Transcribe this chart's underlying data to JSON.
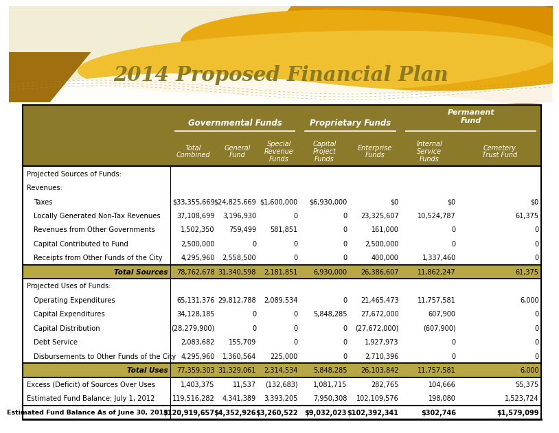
{
  "title": "2014 Proposed Financial Plan",
  "title_color": "#8B7A20",
  "header_bg": "#8B7A2A",
  "col_group1_label": "Governmental Funds",
  "col_group2_label": "Proprietary Funds",
  "col_group3_label": "Permanent\nFund",
  "col_headers": [
    "Total\nCombined",
    "General\nFund",
    "Special\nRevenue\nFunds",
    "Capital\nProject\nFunds",
    "Enterprise\nFunds",
    "Internal\nService\nFunds",
    "Cemetery\nTrust Fund"
  ],
  "rows": [
    {
      "label": "Projected Sources of Funds:",
      "values": [
        "",
        "",
        "",
        "",
        "",
        "",
        ""
      ],
      "style": "section"
    },
    {
      "label": "Revenues:",
      "values": [
        "",
        "",
        "",
        "",
        "",
        "",
        ""
      ],
      "style": "section"
    },
    {
      "label": "Taxes",
      "values": [
        "$33,355,669",
        "$24,825,669",
        "$1,600,000",
        "$6,930,000",
        "$0",
        "$0",
        "$0"
      ],
      "style": "normal",
      "indent": true
    },
    {
      "label": "Locally Generated Non-Tax Revenues",
      "values": [
        "37,108,699",
        "3,196,930",
        "0",
        "0",
        "23,325,607",
        "10,524,787",
        "61,375"
      ],
      "style": "normal",
      "indent": true
    },
    {
      "label": "Revenues from Other Governments",
      "values": [
        "1,502,350",
        "759,499",
        "581,851",
        "0",
        "161,000",
        "0",
        "0"
      ],
      "style": "normal",
      "indent": true
    },
    {
      "label": "Capital Contributed to Fund",
      "values": [
        "2,500,000",
        "0",
        "0",
        "0",
        "2,500,000",
        "0",
        "0"
      ],
      "style": "normal",
      "indent": true
    },
    {
      "label": "Receipts from Other Funds of the City",
      "values": [
        "4,295,960",
        "2,558,500",
        "0",
        "0",
        "400,000",
        "1,337,460",
        "0"
      ],
      "style": "normal",
      "indent": true
    },
    {
      "label": "Total Sources",
      "values": [
        "78,762,678",
        "31,340,598",
        "2,181,851",
        "6,930,000",
        "26,386,607",
        "11,862,247",
        "61,375"
      ],
      "style": "total"
    },
    {
      "label": "Projected Uses of Funds:",
      "values": [
        "",
        "",
        "",
        "",
        "",
        "",
        ""
      ],
      "style": "section"
    },
    {
      "label": "Operating Expenditures",
      "values": [
        "65,131,376",
        "29,812,788",
        "2,089,534",
        "0",
        "21,465,473",
        "11,757,581",
        "6,000"
      ],
      "style": "normal",
      "indent": true
    },
    {
      "label": "Capital Expenditures",
      "values": [
        "34,128,185",
        "0",
        "0",
        "5,848,285",
        "27,672,000",
        "607,900",
        "0"
      ],
      "style": "normal",
      "indent": true
    },
    {
      "label": "Capital Distribution",
      "values": [
        "(28,279,900)",
        "0",
        "0",
        "0",
        "(27,672,000)",
        "(607,900)",
        "0"
      ],
      "style": "normal",
      "indent": true
    },
    {
      "label": "Debt Service",
      "values": [
        "2,083,682",
        "155,709",
        "0",
        "0",
        "1,927,973",
        "0",
        "0"
      ],
      "style": "normal",
      "indent": true
    },
    {
      "label": "Disbursements to Other Funds of the City",
      "values": [
        "4,295,960",
        "1,360,564",
        "225,000",
        "0",
        "2,710,396",
        "0",
        "0"
      ],
      "style": "normal",
      "indent": true
    },
    {
      "label": "Total Uses",
      "values": [
        "77,359,303",
        "31,329,061",
        "2,314,534",
        "5,848,285",
        "26,103,842",
        "11,757,581",
        "6,000"
      ],
      "style": "total"
    },
    {
      "label": "Excess (Deficit) of Sources Over Uses",
      "values": [
        "1,403,375",
        "11,537",
        "(132,683)",
        "1,081,715",
        "282,765",
        "104,666",
        "55,375"
      ],
      "style": "normal",
      "indent": false
    },
    {
      "label": "Estimated Fund Balance: July 1, 2012",
      "values": [
        "119,516,282",
        "4,341,389",
        "3,393,205",
        "7,950,308",
        "102,109,576",
        "198,080",
        "1,523,724"
      ],
      "style": "normal",
      "indent": false
    },
    {
      "label": "Estimated Fund Balance As of June 30, 2013",
      "values": [
        "$120,919,657",
        "$4,352,926",
        "$3,260,522",
        "$9,032,023",
        "$102,392,341",
        "$302,746",
        "$1,579,099"
      ],
      "style": "final"
    }
  ]
}
